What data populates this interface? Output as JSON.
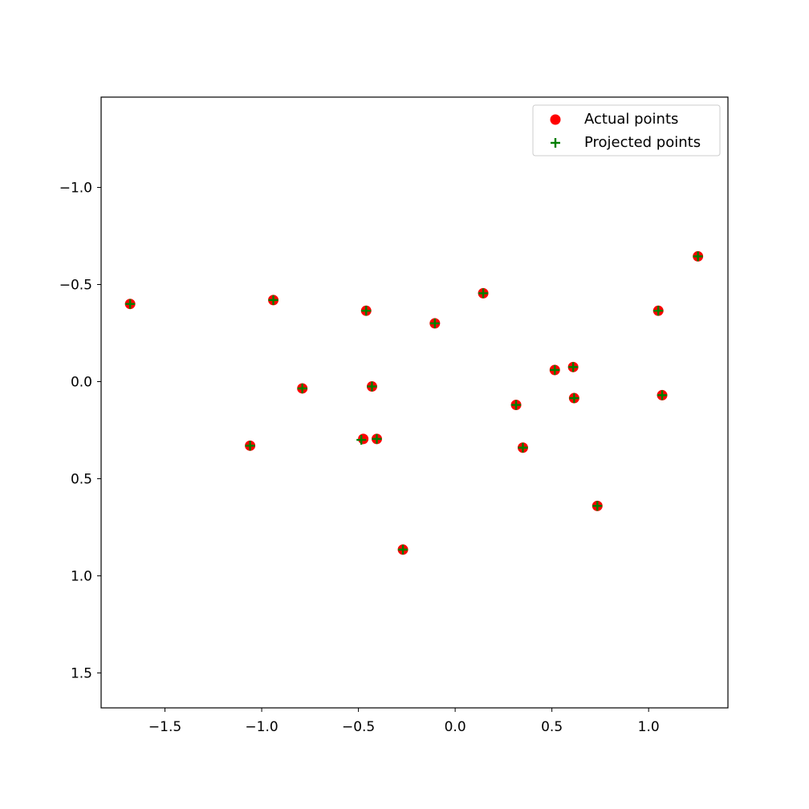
{
  "chart_data": {
    "type": "scatter",
    "title": "",
    "xlabel": "",
    "ylabel": "",
    "xlim": [
      -1.83,
      1.41
    ],
    "ylim": [
      -1.465,
      1.68
    ],
    "y_inverted": true,
    "x_ticks": [
      -1.5,
      -1.0,
      -0.5,
      0.0,
      0.5,
      1.0
    ],
    "x_tick_labels": [
      "−1.5",
      "−1.0",
      "−0.5",
      "0.0",
      "0.5",
      "1.0"
    ],
    "y_ticks": [
      -1.0,
      -0.5,
      0.0,
      0.5,
      1.0,
      1.5
    ],
    "y_tick_labels": [
      "−1.0",
      "−0.5",
      "0.0",
      "0.5",
      "1.0",
      "1.5"
    ],
    "grid": false,
    "legend_position": "top-right",
    "series": [
      {
        "name": "Actual points",
        "marker": "circle",
        "color": "#ff0000",
        "points": [
          [
            -1.68,
            -0.4
          ],
          [
            -0.94,
            -0.42
          ],
          [
            -0.79,
            0.035
          ],
          [
            -1.06,
            0.33
          ],
          [
            -0.46,
            -0.365
          ],
          [
            -0.43,
            0.025
          ],
          [
            -0.475,
            0.295
          ],
          [
            -0.405,
            0.295
          ],
          [
            -0.27,
            0.865
          ],
          [
            -0.105,
            -0.3
          ],
          [
            0.145,
            -0.455
          ],
          [
            0.315,
            0.12
          ],
          [
            0.35,
            0.34
          ],
          [
            0.515,
            -0.06
          ],
          [
            0.61,
            -0.075
          ],
          [
            0.615,
            0.085
          ],
          [
            0.735,
            0.64
          ],
          [
            1.05,
            -0.365
          ],
          [
            1.07,
            0.07
          ],
          [
            1.255,
            -0.645
          ]
        ]
      },
      {
        "name": "Projected points",
        "marker": "plus",
        "color": "#007f00",
        "points": [
          [
            -1.68,
            -0.4
          ],
          [
            -0.94,
            -0.42
          ],
          [
            -0.79,
            0.035
          ],
          [
            -1.06,
            0.33
          ],
          [
            -0.46,
            -0.365
          ],
          [
            -0.43,
            0.025
          ],
          [
            -0.485,
            0.3
          ],
          [
            -0.405,
            0.295
          ],
          [
            -0.27,
            0.865
          ],
          [
            -0.105,
            -0.3
          ],
          [
            0.145,
            -0.455
          ],
          [
            0.315,
            0.12
          ],
          [
            0.35,
            0.34
          ],
          [
            0.515,
            -0.06
          ],
          [
            0.61,
            -0.075
          ],
          [
            0.615,
            0.085
          ],
          [
            0.735,
            0.64
          ],
          [
            1.05,
            -0.365
          ],
          [
            1.07,
            0.07
          ],
          [
            1.255,
            -0.645
          ]
        ]
      }
    ]
  }
}
